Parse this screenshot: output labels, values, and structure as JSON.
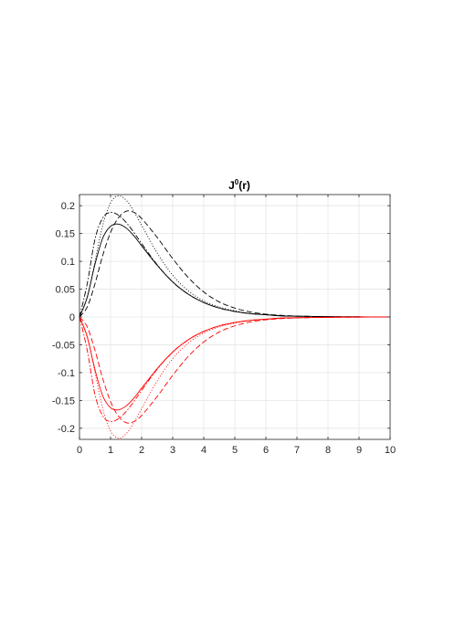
{
  "chart_data": {
    "type": "line",
    "title": {
      "base": "J",
      "sup": "0",
      "rest": "(r)"
    },
    "xlabel": "",
    "ylabel": "",
    "xlim": [
      0,
      10
    ],
    "ylim": [
      -0.22,
      0.22
    ],
    "xticks": [
      0,
      1,
      2,
      3,
      4,
      5,
      6,
      7,
      8,
      9,
      10
    ],
    "yticks": [
      0.2,
      0.15,
      0.1,
      0.05,
      0,
      -0.05,
      -0.1,
      -0.15,
      -0.2
    ],
    "xtick_labels": [
      "0",
      "1",
      "2",
      "3",
      "4",
      "5",
      "6",
      "7",
      "8",
      "9",
      "10"
    ],
    "ytick_labels": [
      "0.2",
      "0.15",
      "0.1",
      "0.05",
      "0",
      "-0.05",
      "-0.1",
      "-0.15",
      "-0.2"
    ],
    "grid": true,
    "colors": {
      "black": "#000000",
      "red": "#ff0000",
      "grid": "#e6e6e6",
      "axis": "#262626"
    },
    "x": [
      0,
      0.25,
      0.5,
      0.75,
      1.0,
      1.25,
      1.5,
      1.75,
      2.0,
      2.5,
      3.0,
      3.5,
      4.0,
      4.5,
      5.0,
      5.5,
      6.0,
      6.5,
      7.0,
      8.0,
      9.0,
      10.0
    ],
    "series": [
      {
        "style": "solid",
        "color": "black",
        "values": [
          0,
          0.036,
          0.095,
          0.142,
          0.163,
          0.167,
          0.16,
          0.146,
          0.128,
          0.093,
          0.063,
          0.041,
          0.026,
          0.016,
          0.01,
          0.006,
          0.004,
          0.002,
          0.0014,
          0.0006,
          0.0002,
          0.0001
        ]
      },
      {
        "style": "dashed",
        "color": "black",
        "values": [
          0,
          0.018,
          0.06,
          0.111,
          0.152,
          0.178,
          0.19,
          0.188,
          0.177,
          0.143,
          0.105,
          0.071,
          0.045,
          0.027,
          0.016,
          0.009,
          0.005,
          0.003,
          0.0016,
          0.0005,
          0.0002,
          0.0001
        ]
      },
      {
        "style": "dashdot",
        "color": "black",
        "values": [
          0,
          0.06,
          0.14,
          0.178,
          0.188,
          0.183,
          0.17,
          0.152,
          0.132,
          0.094,
          0.063,
          0.041,
          0.026,
          0.016,
          0.01,
          0.006,
          0.004,
          0.002,
          0.0014,
          0.0006,
          0.0002,
          0.0001
        ]
      },
      {
        "style": "dotted",
        "color": "black",
        "values": [
          0,
          0.035,
          0.1,
          0.165,
          0.205,
          0.218,
          0.21,
          0.19,
          0.165,
          0.115,
          0.075,
          0.047,
          0.029,
          0.018,
          0.011,
          0.006,
          0.004,
          0.002,
          0.0013,
          0.0005,
          0.0002,
          0.0001
        ]
      },
      {
        "style": "solid",
        "color": "red",
        "values": [
          0,
          -0.036,
          -0.095,
          -0.142,
          -0.163,
          -0.167,
          -0.16,
          -0.146,
          -0.128,
          -0.093,
          -0.063,
          -0.041,
          -0.026,
          -0.016,
          -0.01,
          -0.006,
          -0.004,
          -0.002,
          -0.0014,
          -0.0006,
          -0.0002,
          -0.0001
        ]
      },
      {
        "style": "dashed",
        "color": "red",
        "values": [
          0,
          -0.018,
          -0.06,
          -0.111,
          -0.152,
          -0.178,
          -0.19,
          -0.188,
          -0.177,
          -0.143,
          -0.105,
          -0.071,
          -0.045,
          -0.027,
          -0.016,
          -0.009,
          -0.005,
          -0.003,
          -0.0016,
          -0.0005,
          -0.0002,
          -0.0001
        ]
      },
      {
        "style": "dashdot",
        "color": "red",
        "values": [
          0,
          -0.06,
          -0.14,
          -0.178,
          -0.188,
          -0.183,
          -0.17,
          -0.152,
          -0.132,
          -0.094,
          -0.063,
          -0.041,
          -0.026,
          -0.016,
          -0.01,
          -0.006,
          -0.004,
          -0.002,
          -0.0014,
          -0.0006,
          -0.0002,
          -0.0001
        ]
      },
      {
        "style": "dotted",
        "color": "red",
        "values": [
          0,
          -0.035,
          -0.1,
          -0.165,
          -0.205,
          -0.218,
          -0.21,
          -0.19,
          -0.165,
          -0.115,
          -0.075,
          -0.047,
          -0.029,
          -0.018,
          -0.011,
          -0.006,
          -0.004,
          -0.002,
          -0.0013,
          -0.0005,
          -0.0002,
          -0.0001
        ]
      }
    ]
  }
}
